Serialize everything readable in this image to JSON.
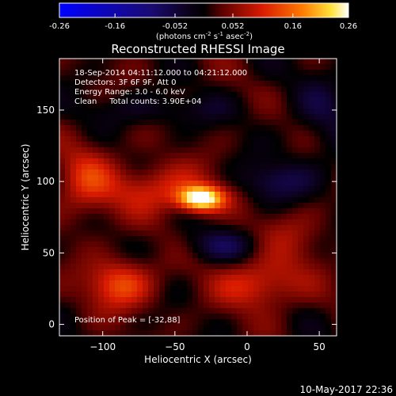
{
  "colorbar": {
    "ticks": [
      "-0.26",
      "-0.16",
      "-0.052",
      "0.052",
      "0.16",
      "0.26"
    ],
    "tick_values": [
      -0.26,
      -0.16,
      -0.052,
      0.052,
      0.16,
      0.26
    ],
    "range": [
      -0.26,
      0.26
    ],
    "unit_label": "(photons cm",
    "unit_exp1": "-2",
    "unit_mid": " s",
    "unit_exp2": "-1",
    "unit_mid2": " asec",
    "unit_exp3": "-2",
    "unit_end": ")"
  },
  "chart_data": {
    "type": "heatmap",
    "title": "Reconstructed RHESSI Image",
    "xlabel": "Heliocentric X (arcsec)",
    "ylabel": "Heliocentric Y (arcsec)",
    "xlim": [
      -130,
      62
    ],
    "ylim": [
      -8,
      186
    ],
    "xticks": [
      -100,
      -50,
      0,
      50
    ],
    "xtick_labels": [
      "−100",
      "−50",
      "0",
      "50"
    ],
    "yticks": [
      0,
      50,
      100,
      150
    ],
    "ytick_labels": [
      "0",
      "50",
      "100",
      "150"
    ],
    "colormap": "rhessi-blue-black-red-yellow-white",
    "peak": [
      -32,
      88
    ],
    "sources": [
      {
        "x": -32,
        "y": 88,
        "amp": 0.26,
        "sx": 11,
        "sy": 6
      },
      {
        "x": -60,
        "y": 95,
        "amp": 0.09,
        "sx": 25,
        "sy": 12
      },
      {
        "x": -88,
        "y": 28,
        "amp": 0.12,
        "sx": 16,
        "sy": 12
      },
      {
        "x": 8,
        "y": 28,
        "amp": 0.1,
        "sx": 20,
        "sy": 12
      },
      {
        "x": -112,
        "y": 100,
        "amp": 0.085,
        "sx": 14,
        "sy": 18
      },
      {
        "x": 30,
        "y": 60,
        "amp": 0.05,
        "sx": 18,
        "sy": 14
      },
      {
        "x": 20,
        "y": 100,
        "amp": -0.07,
        "sx": 18,
        "sy": 10
      },
      {
        "x": -15,
        "y": 55,
        "amp": -0.06,
        "sx": 22,
        "sy": 8
      },
      {
        "x": -60,
        "y": 150,
        "amp": -0.04,
        "sx": 40,
        "sy": 8
      },
      {
        "x": 55,
        "y": 150,
        "amp": -0.04,
        "sx": 15,
        "sy": 30
      }
    ],
    "annotations": [
      "18-Sep-2014 04:11:12.000 to 04:21:12.000",
      "Detectors: 3F 6F 9F, Att 0",
      "Energy Range: 3.0 - 6.0 keV",
      "Clean     Total counts: 3.90E+04"
    ],
    "peak_label": "Position of Peak = [-32,88]"
  },
  "timestamp": "10-May-2017 22:36"
}
